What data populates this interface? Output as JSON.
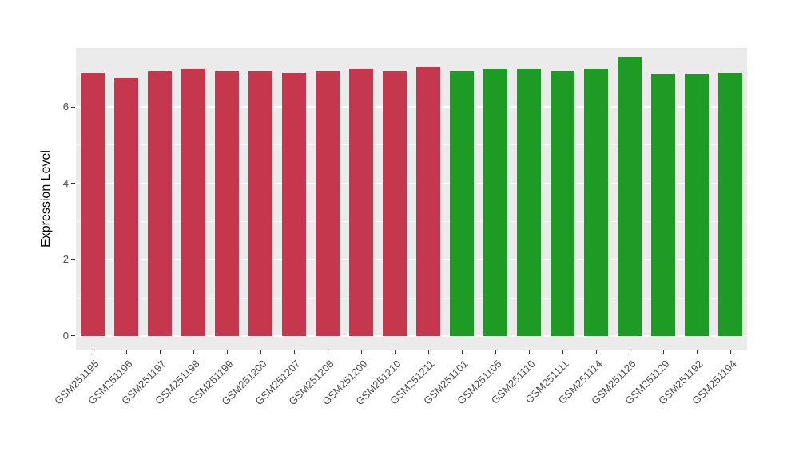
{
  "chart_data": {
    "type": "bar",
    "title": "",
    "xlabel": "",
    "ylabel": "Expression Level",
    "ylim": [
      0,
      7.4
    ],
    "value_range_rendered": [
      -0.36,
      7.55
    ],
    "yticks": [
      0,
      2,
      4,
      6
    ],
    "minor_gridlines": [
      1,
      3,
      5,
      7
    ],
    "grid": true,
    "legend": "none",
    "panel_background": "#EBEBEB",
    "gridline_color": "#FFFFFF",
    "tick_label_color": "#4D4D4D",
    "bar_groups": {
      "red": "#C5374D",
      "green": "#1E9B25"
    },
    "bars": [
      {
        "label": "GSM251195",
        "value": 6.9,
        "group": "red"
      },
      {
        "label": "GSM251196",
        "value": 6.75,
        "group": "red"
      },
      {
        "label": "GSM251197",
        "value": 6.95,
        "group": "red"
      },
      {
        "label": "GSM251198",
        "value": 7.0,
        "group": "red"
      },
      {
        "label": "GSM251199",
        "value": 6.95,
        "group": "red"
      },
      {
        "label": "GSM251200",
        "value": 6.95,
        "group": "red"
      },
      {
        "label": "GSM251207",
        "value": 6.9,
        "group": "red"
      },
      {
        "label": "GSM251208",
        "value": 6.95,
        "group": "red"
      },
      {
        "label": "GSM251209",
        "value": 7.0,
        "group": "red"
      },
      {
        "label": "GSM251210",
        "value": 6.95,
        "group": "red"
      },
      {
        "label": "GSM251211",
        "value": 7.05,
        "group": "red"
      },
      {
        "label": "GSM251101",
        "value": 6.95,
        "group": "green"
      },
      {
        "label": "GSM251105",
        "value": 7.0,
        "group": "green"
      },
      {
        "label": "GSM251110",
        "value": 7.0,
        "group": "green"
      },
      {
        "label": "GSM251111",
        "value": 6.95,
        "group": "green"
      },
      {
        "label": "GSM251114",
        "value": 7.0,
        "group": "green"
      },
      {
        "label": "GSM251126",
        "value": 7.3,
        "group": "green"
      },
      {
        "label": "GSM251129",
        "value": 6.85,
        "group": "green"
      },
      {
        "label": "GSM251192",
        "value": 6.85,
        "group": "green"
      },
      {
        "label": "GSM251194",
        "value": 6.9,
        "group": "green"
      }
    ]
  }
}
